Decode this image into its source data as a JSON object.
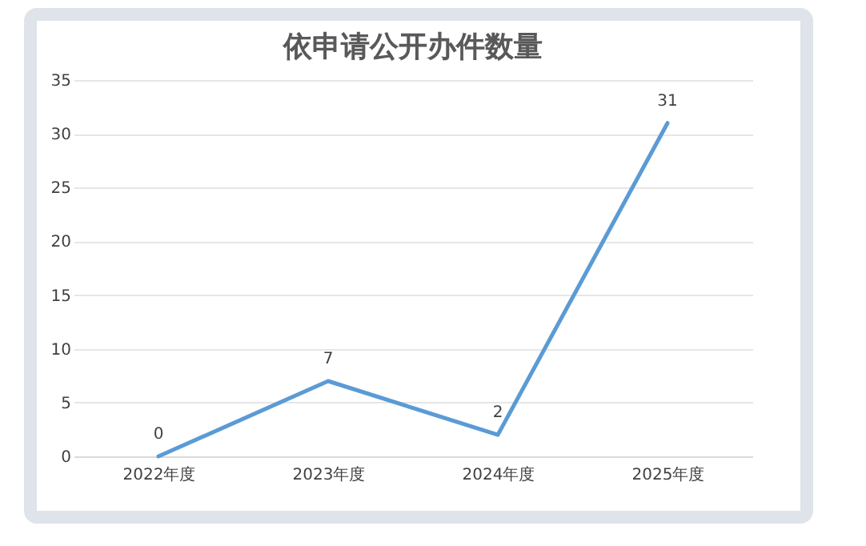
{
  "chart_data": {
    "type": "line",
    "title": "依申请公开办件数量",
    "categories": [
      "2022年度",
      "2023年度",
      "2024年度",
      "2025年度"
    ],
    "series": [
      {
        "color": "#5b9bd5",
        "values": [
          0,
          7,
          2,
          31
        ]
      }
    ],
    "ylim": [
      0,
      35
    ],
    "yticks": [
      0,
      5,
      10,
      15,
      20,
      25,
      30,
      35
    ],
    "grid": "y",
    "data_labels": true,
    "marker": "none",
    "line_style": "solid"
  }
}
